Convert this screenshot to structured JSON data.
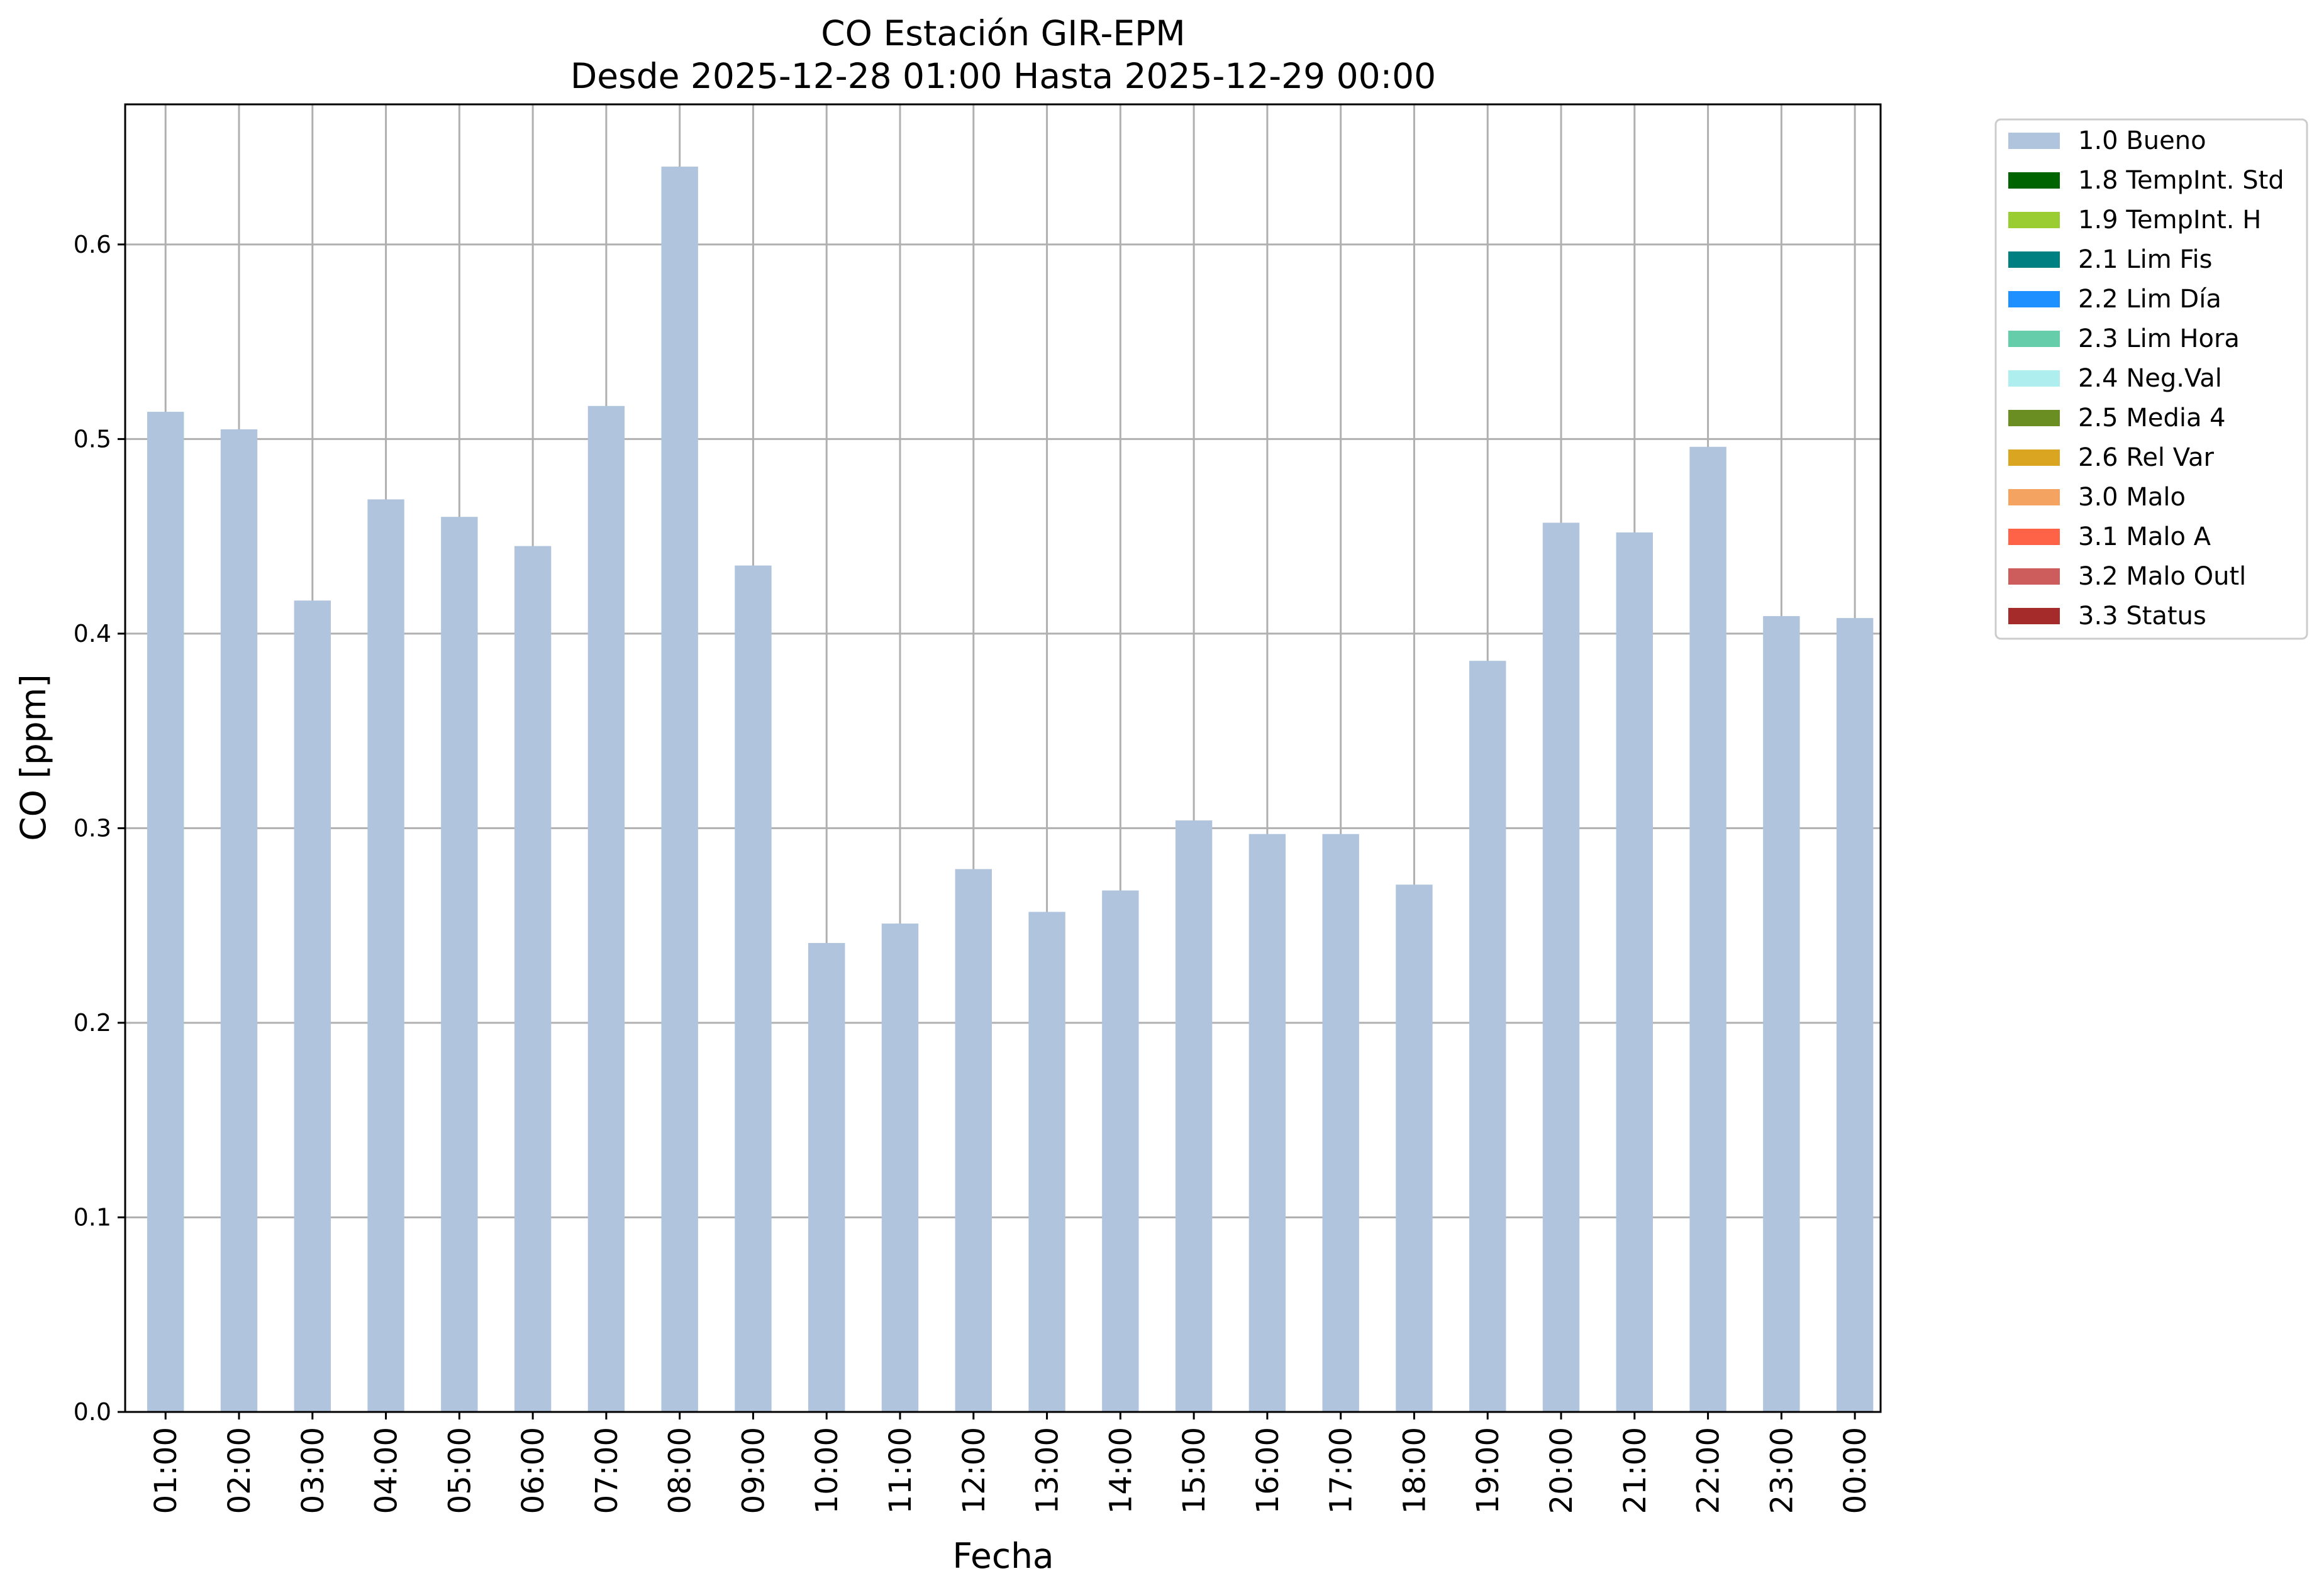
{
  "chart_data": {
    "type": "bar",
    "title": "CO Estación GIR-EPM",
    "subtitle": "Desde 2025-12-28 01:00 Hasta 2025-12-29 00:00",
    "xlabel": "Fecha",
    "ylabel": "CO [ppm]",
    "ylim": [
      0,
      0.672
    ],
    "yticks": [
      "0.0",
      "0.1",
      "0.2",
      "0.3",
      "0.4",
      "0.5",
      "0.6"
    ],
    "grid": true,
    "legend_position": "outside-right",
    "categories": [
      "01:00",
      "02:00",
      "03:00",
      "04:00",
      "05:00",
      "06:00",
      "07:00",
      "08:00",
      "09:00",
      "10:00",
      "11:00",
      "12:00",
      "13:00",
      "14:00",
      "15:00",
      "16:00",
      "17:00",
      "18:00",
      "19:00",
      "20:00",
      "21:00",
      "22:00",
      "23:00",
      "00:00"
    ],
    "series": [
      {
        "name": "1.0 Bueno",
        "color": "#b0c4de",
        "values": [
          0.514,
          0.505,
          0.417,
          0.469,
          0.46,
          0.445,
          0.517,
          0.64,
          0.435,
          0.241,
          0.251,
          0.279,
          0.257,
          0.268,
          0.304,
          0.297,
          0.297,
          0.271,
          0.386,
          0.457,
          0.452,
          0.496,
          0.409,
          0.408
        ]
      }
    ],
    "legend": [
      {
        "label": "1.0 Bueno",
        "color": "#b0c4de"
      },
      {
        "label": "1.8 TempInt. Std",
        "color": "#006400"
      },
      {
        "label": "1.9 TempInt. H",
        "color": "#9acd32"
      },
      {
        "label": "2.1 Lim Fis",
        "color": "#008080"
      },
      {
        "label": "2.2 Lim Día",
        "color": "#1e90ff"
      },
      {
        "label": "2.3 Lim Hora",
        "color": "#66cdaa"
      },
      {
        "label": "2.4 Neg.Val",
        "color": "#afeeee"
      },
      {
        "label": "2.5 Media 4",
        "color": "#6b8e23"
      },
      {
        "label": "2.6 Rel Var",
        "color": "#daa520"
      },
      {
        "label": "3.0 Malo",
        "color": "#f4a460"
      },
      {
        "label": "3.1 Malo A",
        "color": "#ff6347"
      },
      {
        "label": "3.2 Malo Outl",
        "color": "#cd5c5c"
      },
      {
        "label": "3.3 Status",
        "color": "#a52a2a"
      }
    ]
  }
}
